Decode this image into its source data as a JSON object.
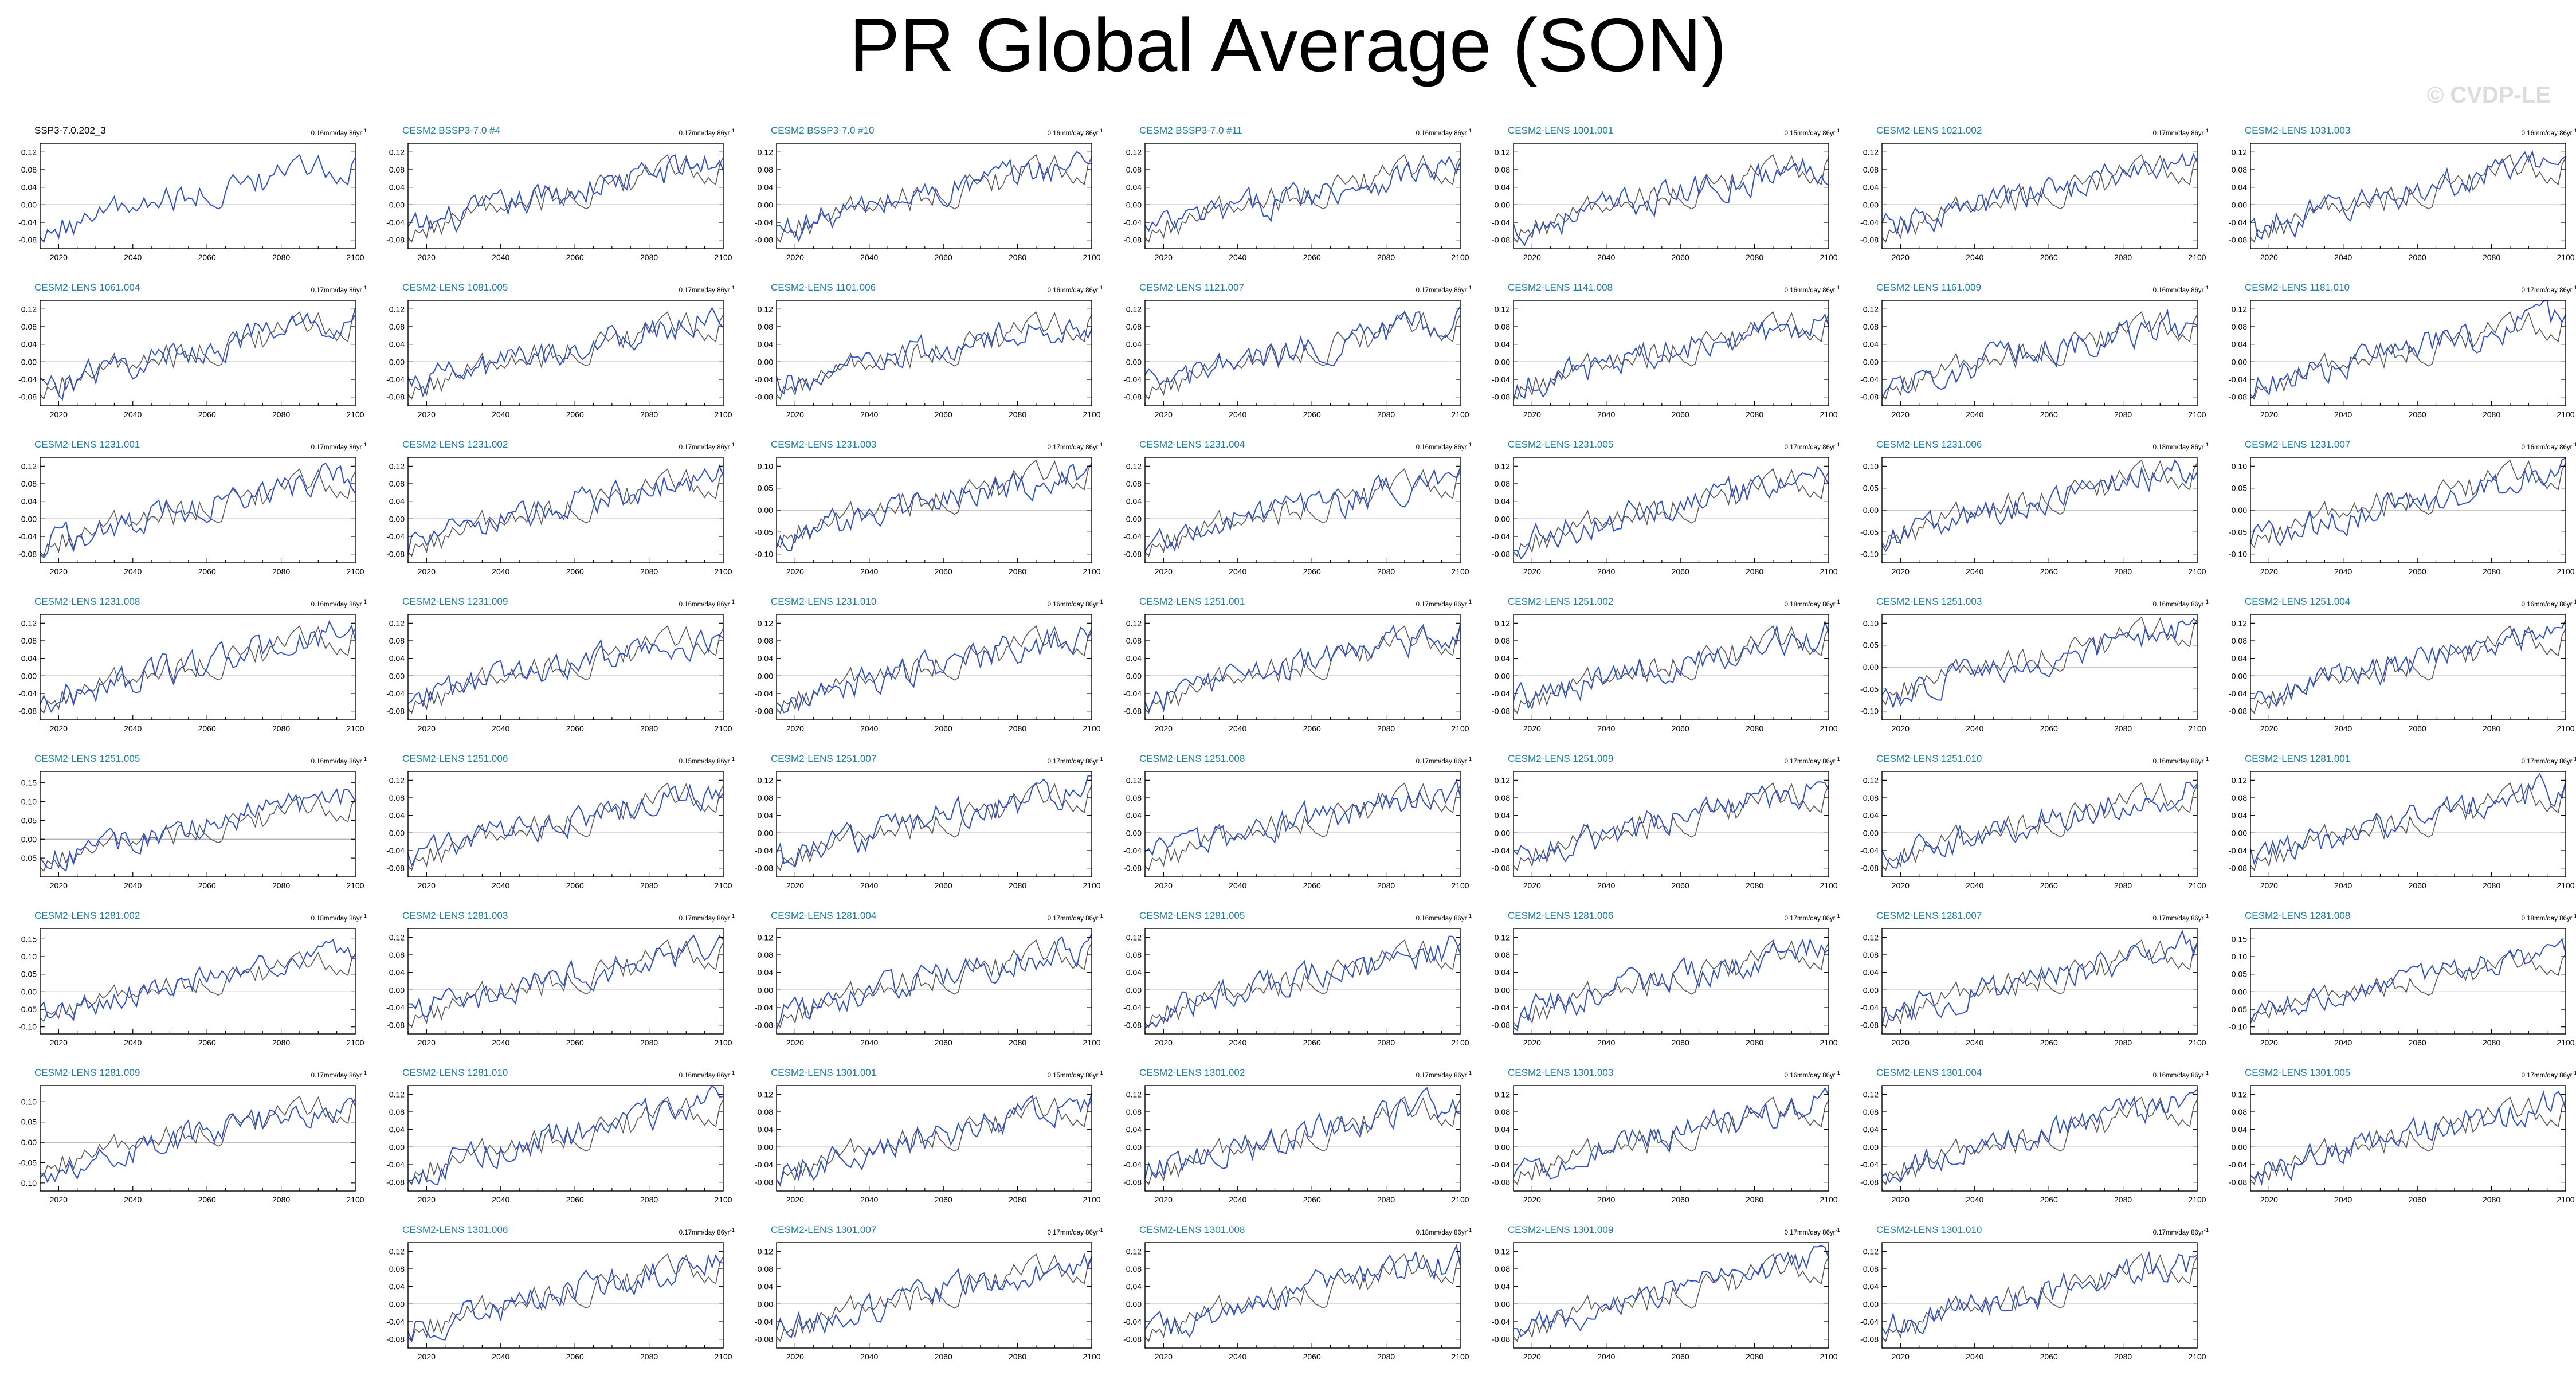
{
  "title": "PR Global Average (SON)",
  "copyright": "© CVDP-LE",
  "colors": {
    "ensemble": "#2f4fd6",
    "observations": "#5a5a5a",
    "title_text": "#1a7fa6",
    "zero_line": "#aaaaaa"
  },
  "chart_data": {
    "type": "line",
    "x_range": [
      2015,
      2100
    ],
    "x_ticks": [
      2020,
      2040,
      2060,
      2080,
      2100
    ],
    "trend_unit": "mm/day 86yr",
    "panels": [
      {
        "title": "SSP3-7.0.202_3",
        "trend": "0.16",
        "ylim": [
          -0.1,
          0.14
        ],
        "yticks": [
          "0.12",
          "0.08",
          "0.04",
          "0.00",
          "-0.04",
          "-0.08"
        ],
        "start": -0.06,
        "end": 0.09,
        "is_observations": true
      },
      {
        "title": "CESM2 BSSP3-7.0 #4",
        "trend": "0.17",
        "ylim": [
          -0.1,
          0.14
        ],
        "yticks": [
          "0.12",
          "0.08",
          "0.04",
          "0.00",
          "-0.04",
          "-0.08"
        ],
        "start": -0.06,
        "end": 0.1
      },
      {
        "title": "CESM2 BSSP3-7.0 #10",
        "trend": "0.16",
        "ylim": [
          -0.1,
          0.14
        ],
        "yticks": [
          "0.12",
          "0.08",
          "0.04",
          "0.00",
          "-0.04",
          "-0.08"
        ],
        "start": -0.06,
        "end": 0.1
      },
      {
        "title": "CESM2 BSSP3-7.0 #11",
        "trend": "0.16",
        "ylim": [
          -0.1,
          0.14
        ],
        "yticks": [
          "0.12",
          "0.08",
          "0.04",
          "0.00",
          "-0.04",
          "-0.08"
        ],
        "start": -0.06,
        "end": 0.09
      },
      {
        "title": "CESM2-LENS 1001.001",
        "trend": "0.15",
        "ylim": [
          -0.1,
          0.14
        ],
        "yticks": [
          "0.12",
          "0.08",
          "0.04",
          "0.00",
          "-0.04",
          "-0.08"
        ],
        "start": -0.06,
        "end": 0.09
      },
      {
        "title": "CESM2-LENS 1021.002",
        "trend": "0.17",
        "ylim": [
          -0.1,
          0.14
        ],
        "yticks": [
          "0.12",
          "0.08",
          "0.04",
          "0.00",
          "-0.04",
          "-0.08"
        ],
        "start": -0.06,
        "end": 0.1
      },
      {
        "title": "CESM2-LENS 1031.003",
        "trend": "0.16",
        "ylim": [
          -0.1,
          0.14
        ],
        "yticks": [
          "0.12",
          "0.08",
          "0.04",
          "0.00",
          "-0.04",
          "-0.08"
        ],
        "start": -0.06,
        "end": 0.1
      },
      {
        "title": "CESM2-LENS 1061.004",
        "trend": "0.17",
        "ylim": [
          -0.1,
          0.14
        ],
        "yticks": [
          "0.12",
          "0.08",
          "0.04",
          "0.00",
          "-0.04",
          "-0.08"
        ],
        "start": -0.06,
        "end": 0.1
      },
      {
        "title": "CESM2-LENS 1081.005",
        "trend": "0.17",
        "ylim": [
          -0.1,
          0.14
        ],
        "yticks": [
          "0.12",
          "0.08",
          "0.04",
          "0.00",
          "-0.04",
          "-0.08"
        ],
        "start": -0.06,
        "end": 0.1
      },
      {
        "title": "CESM2-LENS 1101.006",
        "trend": "0.16",
        "ylim": [
          -0.1,
          0.14
        ],
        "yticks": [
          "0.12",
          "0.08",
          "0.04",
          "0.00",
          "-0.04",
          "-0.08"
        ],
        "start": -0.06,
        "end": 0.09
      },
      {
        "title": "CESM2-LENS 1121.007",
        "trend": "0.17",
        "ylim": [
          -0.1,
          0.14
        ],
        "yticks": [
          "0.12",
          "0.08",
          "0.04",
          "0.00",
          "-0.04",
          "-0.08"
        ],
        "start": -0.06,
        "end": 0.1
      },
      {
        "title": "CESM2-LENS 1141.008",
        "trend": "0.16",
        "ylim": [
          -0.1,
          0.14
        ],
        "yticks": [
          "0.12",
          "0.08",
          "0.04",
          "0.00",
          "-0.04",
          "-0.08"
        ],
        "start": -0.06,
        "end": 0.1
      },
      {
        "title": "CESM2-LENS 1161.009",
        "trend": "0.16",
        "ylim": [
          -0.1,
          0.14
        ],
        "yticks": [
          "0.12",
          "0.08",
          "0.04",
          "0.00",
          "-0.04",
          "-0.08"
        ],
        "start": -0.06,
        "end": 0.09
      },
      {
        "title": "CESM2-LENS 1181.010",
        "trend": "0.17",
        "ylim": [
          -0.1,
          0.14
        ],
        "yticks": [
          "0.12",
          "0.08",
          "0.04",
          "0.00",
          "-0.04",
          "-0.08"
        ],
        "start": -0.06,
        "end": 0.1
      },
      {
        "title": "CESM2-LENS 1231.001",
        "trend": "0.17",
        "ylim": [
          -0.1,
          0.14
        ],
        "yticks": [
          "0.12",
          "0.08",
          "0.04",
          "0.00",
          "-0.04",
          "-0.08"
        ],
        "start": -0.06,
        "end": 0.1
      },
      {
        "title": "CESM2-LENS 1231.002",
        "trend": "0.17",
        "ylim": [
          -0.1,
          0.14
        ],
        "yticks": [
          "0.12",
          "0.08",
          "0.04",
          "0.00",
          "-0.04",
          "-0.08"
        ],
        "start": -0.06,
        "end": 0.1
      },
      {
        "title": "CESM2-LENS 1231.003",
        "trend": "0.17",
        "ylim": [
          -0.12,
          0.12
        ],
        "yticks": [
          "0.10",
          "0.05",
          "0.00",
          "-0.05",
          "-0.10"
        ],
        "start": -0.07,
        "end": 0.09
      },
      {
        "title": "CESM2-LENS 1231.004",
        "trend": "0.16",
        "ylim": [
          -0.1,
          0.14
        ],
        "yticks": [
          "0.12",
          "0.08",
          "0.04",
          "0.00",
          "-0.04",
          "-0.08"
        ],
        "start": -0.06,
        "end": 0.09
      },
      {
        "title": "CESM2-LENS 1231.005",
        "trend": "0.17",
        "ylim": [
          -0.1,
          0.14
        ],
        "yticks": [
          "0.12",
          "0.08",
          "0.04",
          "0.00",
          "-0.04",
          "-0.08"
        ],
        "start": -0.06,
        "end": 0.1
      },
      {
        "title": "CESM2-LENS 1231.006",
        "trend": "0.18",
        "ylim": [
          -0.12,
          0.12
        ],
        "yticks": [
          "0.10",
          "0.05",
          "0.00",
          "-0.05",
          "-0.10"
        ],
        "start": -0.07,
        "end": 0.1
      },
      {
        "title": "CESM2-LENS 1231.007",
        "trend": "0.16",
        "ylim": [
          -0.12,
          0.12
        ],
        "yticks": [
          "0.10",
          "0.05",
          "0.00",
          "-0.05",
          "-0.10"
        ],
        "start": -0.07,
        "end": 0.09
      },
      {
        "title": "CESM2-LENS 1231.008",
        "trend": "0.16",
        "ylim": [
          -0.1,
          0.14
        ],
        "yticks": [
          "0.12",
          "0.08",
          "0.04",
          "0.00",
          "-0.04",
          "-0.08"
        ],
        "start": -0.06,
        "end": 0.1
      },
      {
        "title": "CESM2-LENS 1231.009",
        "trend": "0.16",
        "ylim": [
          -0.1,
          0.14
        ],
        "yticks": [
          "0.12",
          "0.08",
          "0.04",
          "0.00",
          "-0.04",
          "-0.08"
        ],
        "start": -0.06,
        "end": 0.09
      },
      {
        "title": "CESM2-LENS 1231.010",
        "trend": "0.16",
        "ylim": [
          -0.1,
          0.14
        ],
        "yticks": [
          "0.12",
          "0.08",
          "0.04",
          "0.00",
          "-0.04",
          "-0.08"
        ],
        "start": -0.06,
        "end": 0.09
      },
      {
        "title": "CESM2-LENS 1251.001",
        "trend": "0.17",
        "ylim": [
          -0.1,
          0.14
        ],
        "yticks": [
          "0.12",
          "0.08",
          "0.04",
          "0.00",
          "-0.04",
          "-0.08"
        ],
        "start": -0.06,
        "end": 0.1
      },
      {
        "title": "CESM2-LENS 1251.002",
        "trend": "0.18",
        "ylim": [
          -0.1,
          0.14
        ],
        "yticks": [
          "0.12",
          "0.08",
          "0.04",
          "0.00",
          "-0.04",
          "-0.08"
        ],
        "start": -0.06,
        "end": 0.1
      },
      {
        "title": "CESM2-LENS 1251.003",
        "trend": "0.16",
        "ylim": [
          -0.12,
          0.12
        ],
        "yticks": [
          "0.10",
          "0.05",
          "0.00",
          "-0.05",
          "-0.10"
        ],
        "start": -0.07,
        "end": 0.09
      },
      {
        "title": "CESM2-LENS 1251.004",
        "trend": "0.16",
        "ylim": [
          -0.1,
          0.14
        ],
        "yticks": [
          "0.12",
          "0.08",
          "0.04",
          "0.00",
          "-0.04",
          "-0.08"
        ],
        "start": -0.06,
        "end": 0.1
      },
      {
        "title": "CESM2-LENS 1251.005",
        "trend": "0.16",
        "ylim": [
          -0.1,
          0.18
        ],
        "yticks": [
          "0.15",
          "0.10",
          "0.05",
          "0.00",
          "-0.05"
        ],
        "start": -0.06,
        "end": 0.12
      },
      {
        "title": "CESM2-LENS 1251.006",
        "trend": "0.15",
        "ylim": [
          -0.1,
          0.14
        ],
        "yticks": [
          "0.12",
          "0.08",
          "0.04",
          "0.00",
          "-0.04",
          "-0.08"
        ],
        "start": -0.06,
        "end": 0.1
      },
      {
        "title": "CESM2-LENS 1251.007",
        "trend": "0.17",
        "ylim": [
          -0.1,
          0.14
        ],
        "yticks": [
          "0.12",
          "0.08",
          "0.04",
          "0.00",
          "-0.04",
          "-0.08"
        ],
        "start": -0.06,
        "end": 0.1
      },
      {
        "title": "CESM2-LENS 1251.008",
        "trend": "0.17",
        "ylim": [
          -0.1,
          0.14
        ],
        "yticks": [
          "0.12",
          "0.08",
          "0.04",
          "0.00",
          "-0.04",
          "-0.08"
        ],
        "start": -0.06,
        "end": 0.1
      },
      {
        "title": "CESM2-LENS 1251.009",
        "trend": "0.17",
        "ylim": [
          -0.1,
          0.14
        ],
        "yticks": [
          "0.12",
          "0.08",
          "0.04",
          "0.00",
          "-0.04",
          "-0.08"
        ],
        "start": -0.06,
        "end": 0.1
      },
      {
        "title": "CESM2-LENS 1251.010",
        "trend": "0.16",
        "ylim": [
          -0.1,
          0.14
        ],
        "yticks": [
          "0.12",
          "0.08",
          "0.04",
          "0.00",
          "-0.04",
          "-0.08"
        ],
        "start": -0.06,
        "end": 0.1
      },
      {
        "title": "CESM2-LENS 1281.001",
        "trend": "0.17",
        "ylim": [
          -0.1,
          0.14
        ],
        "yticks": [
          "0.12",
          "0.08",
          "0.04",
          "0.00",
          "-0.04",
          "-0.08"
        ],
        "start": -0.06,
        "end": 0.1
      },
      {
        "title": "CESM2-LENS 1281.002",
        "trend": "0.18",
        "ylim": [
          -0.12,
          0.18
        ],
        "yticks": [
          "0.15",
          "0.10",
          "0.05",
          "0.00",
          "-0.05",
          "-0.10"
        ],
        "start": -0.07,
        "end": 0.12
      },
      {
        "title": "CESM2-LENS 1281.003",
        "trend": "0.17",
        "ylim": [
          -0.1,
          0.14
        ],
        "yticks": [
          "0.12",
          "0.08",
          "0.04",
          "0.00",
          "-0.04",
          "-0.08"
        ],
        "start": -0.06,
        "end": 0.1
      },
      {
        "title": "CESM2-LENS 1281.004",
        "trend": "0.17",
        "ylim": [
          -0.1,
          0.14
        ],
        "yticks": [
          "0.12",
          "0.08",
          "0.04",
          "0.00",
          "-0.04",
          "-0.08"
        ],
        "start": -0.06,
        "end": 0.1
      },
      {
        "title": "CESM2-LENS 1281.005",
        "trend": "0.16",
        "ylim": [
          -0.1,
          0.14
        ],
        "yticks": [
          "0.12",
          "0.08",
          "0.04",
          "0.00",
          "-0.04",
          "-0.08"
        ],
        "start": -0.06,
        "end": 0.1
      },
      {
        "title": "CESM2-LENS 1281.006",
        "trend": "0.17",
        "ylim": [
          -0.1,
          0.14
        ],
        "yticks": [
          "0.12",
          "0.08",
          "0.04",
          "0.00",
          "-0.04",
          "-0.08"
        ],
        "start": -0.06,
        "end": 0.1
      },
      {
        "title": "CESM2-LENS 1281.007",
        "trend": "0.17",
        "ylim": [
          -0.1,
          0.14
        ],
        "yticks": [
          "0.12",
          "0.08",
          "0.04",
          "0.00",
          "-0.04",
          "-0.08"
        ],
        "start": -0.06,
        "end": 0.1
      },
      {
        "title": "CESM2-LENS 1281.008",
        "trend": "0.18",
        "ylim": [
          -0.12,
          0.18
        ],
        "yticks": [
          "0.15",
          "0.10",
          "0.05",
          "0.00",
          "-0.05",
          "-0.10"
        ],
        "start": -0.07,
        "end": 0.12
      },
      {
        "title": "CESM2-LENS 1281.009",
        "trend": "0.17",
        "ylim": [
          -0.12,
          0.14
        ],
        "yticks": [
          "0.10",
          "0.05",
          "0.00",
          "-0.05",
          "-0.10"
        ],
        "start": -0.07,
        "end": 0.09
      },
      {
        "title": "CESM2-LENS 1281.010",
        "trend": "0.16",
        "ylim": [
          -0.1,
          0.14
        ],
        "yticks": [
          "0.12",
          "0.08",
          "0.04",
          "0.00",
          "-0.04",
          "-0.08"
        ],
        "start": -0.06,
        "end": 0.1
      },
      {
        "title": "CESM2-LENS 1301.001",
        "trend": "0.15",
        "ylim": [
          -0.1,
          0.14
        ],
        "yticks": [
          "0.12",
          "0.08",
          "0.04",
          "0.00",
          "-0.04",
          "-0.08"
        ],
        "start": -0.06,
        "end": 0.1
      },
      {
        "title": "CESM2-LENS 1301.002",
        "trend": "0.17",
        "ylim": [
          -0.1,
          0.14
        ],
        "yticks": [
          "0.12",
          "0.08",
          "0.04",
          "0.00",
          "-0.04",
          "-0.08"
        ],
        "start": -0.06,
        "end": 0.1
      },
      {
        "title": "CESM2-LENS 1301.003",
        "trend": "0.16",
        "ylim": [
          -0.1,
          0.14
        ],
        "yticks": [
          "0.12",
          "0.08",
          "0.04",
          "0.00",
          "-0.04",
          "-0.08"
        ],
        "start": -0.06,
        "end": 0.1
      },
      {
        "title": "CESM2-LENS 1301.004",
        "trend": "0.16",
        "ylim": [
          -0.1,
          0.14
        ],
        "yticks": [
          "0.12",
          "0.08",
          "0.04",
          "0.00",
          "-0.04",
          "-0.08"
        ],
        "start": -0.06,
        "end": 0.1
      },
      {
        "title": "CESM2-LENS 1301.005",
        "trend": "0.17",
        "ylim": [
          -0.1,
          0.14
        ],
        "yticks": [
          "0.12",
          "0.08",
          "0.04",
          "0.00",
          "-0.04",
          "-0.08"
        ],
        "start": -0.06,
        "end": 0.1
      },
      {
        "title": "CESM2-LENS 1301.006",
        "trend": "0.17",
        "ylim": [
          -0.1,
          0.14
        ],
        "yticks": [
          "0.12",
          "0.08",
          "0.04",
          "0.00",
          "-0.04",
          "-0.08"
        ],
        "start": -0.06,
        "end": 0.1
      },
      {
        "title": "CESM2-LENS 1301.007",
        "trend": "0.17",
        "ylim": [
          -0.1,
          0.14
        ],
        "yticks": [
          "0.12",
          "0.08",
          "0.04",
          "0.00",
          "-0.04",
          "-0.08"
        ],
        "start": -0.06,
        "end": 0.1
      },
      {
        "title": "CESM2-LENS 1301.008",
        "trend": "0.18",
        "ylim": [
          -0.1,
          0.14
        ],
        "yticks": [
          "0.12",
          "0.08",
          "0.04",
          "0.00",
          "-0.04",
          "-0.08"
        ],
        "start": -0.06,
        "end": 0.1
      },
      {
        "title": "CESM2-LENS 1301.009",
        "trend": "0.17",
        "ylim": [
          -0.1,
          0.14
        ],
        "yticks": [
          "0.12",
          "0.08",
          "0.04",
          "0.00",
          "-0.04",
          "-0.08"
        ],
        "start": -0.06,
        "end": 0.1
      },
      {
        "title": "CESM2-LENS 1301.010",
        "trend": "0.17",
        "ylim": [
          -0.1,
          0.14
        ],
        "yticks": [
          "0.12",
          "0.08",
          "0.04",
          "0.00",
          "-0.04",
          "-0.08"
        ],
        "start": -0.06,
        "end": 0.1
      }
    ]
  }
}
